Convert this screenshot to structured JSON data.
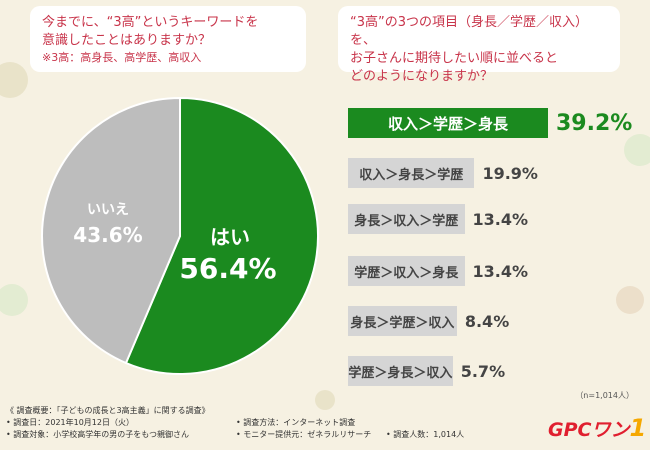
{
  "q1": {
    "text_line1": "今までに、“3高”というキーワードを",
    "text_line2": "意識したことはありますか？",
    "note": "※3高：高身長、高学歴、高収入"
  },
  "q2": {
    "text_line1": "“3高”の3つの項目（身長／学歴／収入）を、",
    "text_line2": "お子さんに期待したい順に並べると",
    "text_line3": "どのようになりますか？"
  },
  "chart_data": [
    {
      "type": "pie",
      "slices": [
        {
          "label": "はい",
          "value": 56.4,
          "value_label": "56.4%",
          "color": "#1b8a1f"
        },
        {
          "label": "いいえ",
          "value": 43.6,
          "value_label": "43.6%",
          "color": "#bdbdbd"
        }
      ]
    },
    {
      "type": "bar",
      "categories": [
        "収入＞学歴＞身長",
        "収入＞身長＞学歴",
        "身長＞収入＞学歴",
        "学歴＞収入＞身長",
        "身長＞学歴＞収入",
        "学歴＞身長＞収入"
      ],
      "values": [
        39.2,
        19.9,
        13.4,
        13.4,
        8.4,
        5.7
      ],
      "value_labels": [
        "39.2%",
        "19.9%",
        "13.4%",
        "13.4%",
        "8.4%",
        "5.7%"
      ],
      "highlight_color": "#1b8a1f",
      "bar_color": "#d5d5d5"
    }
  ],
  "sample_size": "（n=1,014人）",
  "footer": {
    "title": "《 調査概要：「子どもの成長と3高主義」に関する調査》",
    "date": "• 調査日：2021年10月12日（火）",
    "target": "• 調査対象：小学校高学年の男の子をもつ親御さん",
    "method": "• 調査方法：インターネット調査",
    "provider": "• モニター提供元：ゼネラルリサーチ",
    "count": "• 調査人数：1,014人"
  },
  "logo": {
    "main": "GPCワン",
    "one": "1"
  }
}
